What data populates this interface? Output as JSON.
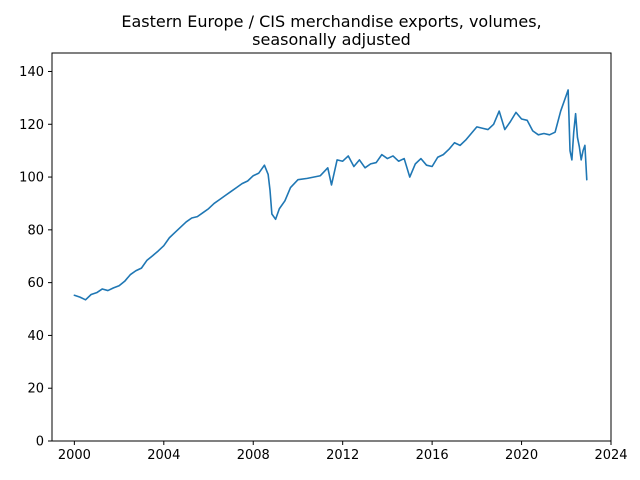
{
  "chart_data": {
    "type": "line",
    "title_lines": [
      "Eastern Europe / CIS merchandise exports, volumes,",
      "seasonally adjusted"
    ],
    "xlabel": "",
    "ylabel": "",
    "xlim": [
      1999,
      2024
    ],
    "ylim": [
      0,
      147
    ],
    "x_ticks": [
      2000,
      2004,
      2008,
      2012,
      2016,
      2020,
      2024
    ],
    "x_tick_labels": [
      "2000",
      "2004",
      "2008",
      "2012",
      "2016",
      "2020",
      "2024"
    ],
    "y_ticks": [
      0,
      20,
      40,
      60,
      80,
      100,
      120,
      140
    ],
    "y_tick_labels": [
      "0",
      "20",
      "40",
      "60",
      "80",
      "100",
      "120",
      "140"
    ],
    "grid": false,
    "legend": "none",
    "series": [
      {
        "color": "#1f77b4",
        "points": [
          [
            "2000-01",
            55.2
          ],
          [
            "2000-04",
            54.5
          ],
          [
            "2000-07",
            53.5
          ],
          [
            "2000-10",
            55.5
          ],
          [
            "2001-01",
            56.2
          ],
          [
            "2001-04",
            57.6
          ],
          [
            "2001-07",
            57.0
          ],
          [
            "2001-10",
            58.0
          ],
          [
            "2002-01",
            58.8
          ],
          [
            "2002-04",
            60.5
          ],
          [
            "2002-07",
            63.0
          ],
          [
            "2002-10",
            64.5
          ],
          [
            "2003-01",
            65.5
          ],
          [
            "2003-04",
            68.5
          ],
          [
            "2003-07",
            70.2
          ],
          [
            "2003-10",
            72.0
          ],
          [
            "2004-01",
            74.0
          ],
          [
            "2004-04",
            77.0
          ],
          [
            "2004-07",
            79.0
          ],
          [
            "2004-10",
            81.0
          ],
          [
            "2005-01",
            83.0
          ],
          [
            "2005-04",
            84.5
          ],
          [
            "2005-07",
            85.0
          ],
          [
            "2005-10",
            86.5
          ],
          [
            "2006-01",
            88.0
          ],
          [
            "2006-04",
            90.0
          ],
          [
            "2006-07",
            91.5
          ],
          [
            "2006-10",
            93.0
          ],
          [
            "2007-01",
            94.5
          ],
          [
            "2007-04",
            96.0
          ],
          [
            "2007-07",
            97.5
          ],
          [
            "2007-10",
            98.5
          ],
          [
            "2008-01",
            100.5
          ],
          [
            "2008-04",
            101.5
          ],
          [
            "2008-07",
            104.5
          ],
          [
            "2008-09",
            101.0
          ],
          [
            "2008-10",
            95.0
          ],
          [
            "2008-11",
            86.0
          ],
          [
            "2009-01",
            84.0
          ],
          [
            "2009-03",
            88.0
          ],
          [
            "2009-06",
            91.0
          ],
          [
            "2009-09",
            96.0
          ],
          [
            "2010-01",
            99.0
          ],
          [
            "2010-06",
            99.5
          ],
          [
            "2011-01",
            100.5
          ],
          [
            "2011-05",
            103.5
          ],
          [
            "2011-07",
            97.0
          ],
          [
            "2011-10",
            106.5
          ],
          [
            "2012-01",
            106.0
          ],
          [
            "2012-04",
            108.0
          ],
          [
            "2012-07",
            104.0
          ],
          [
            "2012-10",
            106.5
          ],
          [
            "2013-01",
            103.5
          ],
          [
            "2013-04",
            105.0
          ],
          [
            "2013-07",
            105.5
          ],
          [
            "2013-10",
            108.5
          ],
          [
            "2014-01",
            107.0
          ],
          [
            "2014-04",
            108.0
          ],
          [
            "2014-07",
            106.0
          ],
          [
            "2014-10",
            107.0
          ],
          [
            "2015-01",
            100.0
          ],
          [
            "2015-04",
            105.0
          ],
          [
            "2015-07",
            107.0
          ],
          [
            "2015-10",
            104.5
          ],
          [
            "2016-01",
            104.0
          ],
          [
            "2016-04",
            107.5
          ],
          [
            "2016-07",
            108.5
          ],
          [
            "2016-10",
            110.5
          ],
          [
            "2017-01",
            113.0
          ],
          [
            "2017-04",
            112.0
          ],
          [
            "2017-07",
            114.0
          ],
          [
            "2017-10",
            116.5
          ],
          [
            "2018-01",
            119.0
          ],
          [
            "2018-04",
            118.5
          ],
          [
            "2018-07",
            118.0
          ],
          [
            "2018-10",
            120.0
          ],
          [
            "2019-01",
            125.0
          ],
          [
            "2019-04",
            118.0
          ],
          [
            "2019-07",
            121.0
          ],
          [
            "2019-10",
            124.5
          ],
          [
            "2020-01",
            122.0
          ],
          [
            "2020-04",
            121.5
          ],
          [
            "2020-07",
            117.5
          ],
          [
            "2020-10",
            116.0
          ],
          [
            "2021-01",
            116.5
          ],
          [
            "2021-04",
            116.0
          ],
          [
            "2021-07",
            117.0
          ],
          [
            "2021-10",
            125.0
          ],
          [
            "2022-01",
            131.0
          ],
          [
            "2022-02",
            133.0
          ],
          [
            "2022-03",
            110.0
          ],
          [
            "2022-04",
            106.5
          ],
          [
            "2022-05",
            117.0
          ],
          [
            "2022-06",
            124.0
          ],
          [
            "2022-07",
            115.0
          ],
          [
            "2022-08",
            111.5
          ],
          [
            "2022-09",
            106.5
          ],
          [
            "2022-10",
            110.0
          ],
          [
            "2022-11",
            112.0
          ],
          [
            "2022-12",
            99.0
          ]
        ]
      }
    ]
  }
}
